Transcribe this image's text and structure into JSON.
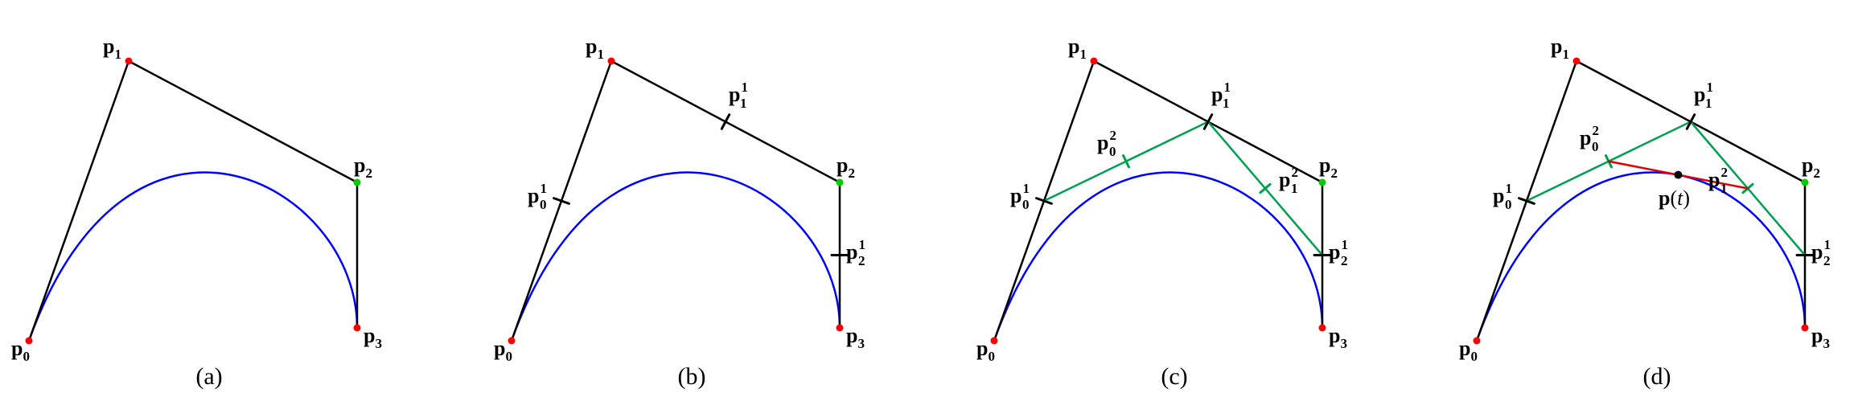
{
  "colors": {
    "polygon": "#000000",
    "curve": "#0000ff",
    "level2": "#00a050",
    "level3": "#e00000",
    "point_red": "#ff0000",
    "point_green": "#00cc00",
    "point_black": "#000000"
  },
  "panels": [
    {
      "caption": "(a)",
      "labels": {
        "p0": {
          "base": "p",
          "sub": "0"
        },
        "p1": {
          "base": "p",
          "sub": "1"
        },
        "p2": {
          "base": "p",
          "sub": "2"
        },
        "p3": {
          "base": "p",
          "sub": "3"
        }
      }
    },
    {
      "caption": "(b)",
      "labels": {
        "p0": {
          "base": "p",
          "sub": "0"
        },
        "p1": {
          "base": "p",
          "sub": "1"
        },
        "p2": {
          "base": "p",
          "sub": "2"
        },
        "p3": {
          "base": "p",
          "sub": "3"
        },
        "p01": {
          "base": "p",
          "sub": "0",
          "sup": "1"
        },
        "p11": {
          "base": "p",
          "sub": "1",
          "sup": "1"
        },
        "p21": {
          "base": "p",
          "sub": "2",
          "sup": "1"
        }
      }
    },
    {
      "caption": "(c)",
      "labels": {
        "p0": {
          "base": "p",
          "sub": "0"
        },
        "p1": {
          "base": "p",
          "sub": "1"
        },
        "p2": {
          "base": "p",
          "sub": "2"
        },
        "p3": {
          "base": "p",
          "sub": "3"
        },
        "p01": {
          "base": "p",
          "sub": "0",
          "sup": "1"
        },
        "p11": {
          "base": "p",
          "sub": "1",
          "sup": "1"
        },
        "p21": {
          "base": "p",
          "sub": "2",
          "sup": "1"
        },
        "p02": {
          "base": "p",
          "sub": "0",
          "sup": "2"
        },
        "p12": {
          "base": "p",
          "sub": "1",
          "sup": "2"
        }
      }
    },
    {
      "caption": "(d)",
      "labels": {
        "p0": {
          "base": "p",
          "sub": "0"
        },
        "p1": {
          "base": "p",
          "sub": "1"
        },
        "p2": {
          "base": "p",
          "sub": "2"
        },
        "p3": {
          "base": "p",
          "sub": "3"
        },
        "p01": {
          "base": "p",
          "sub": "0",
          "sup": "1"
        },
        "p11": {
          "base": "p",
          "sub": "1",
          "sup": "1"
        },
        "p21": {
          "base": "p",
          "sub": "2",
          "sup": "1"
        },
        "p02": {
          "base": "p",
          "sub": "0",
          "sup": "2"
        },
        "p12": {
          "base": "p",
          "sub": "1",
          "sup": "2"
        },
        "pt": {
          "base": "p",
          "arg": "t"
        }
      }
    }
  ]
}
